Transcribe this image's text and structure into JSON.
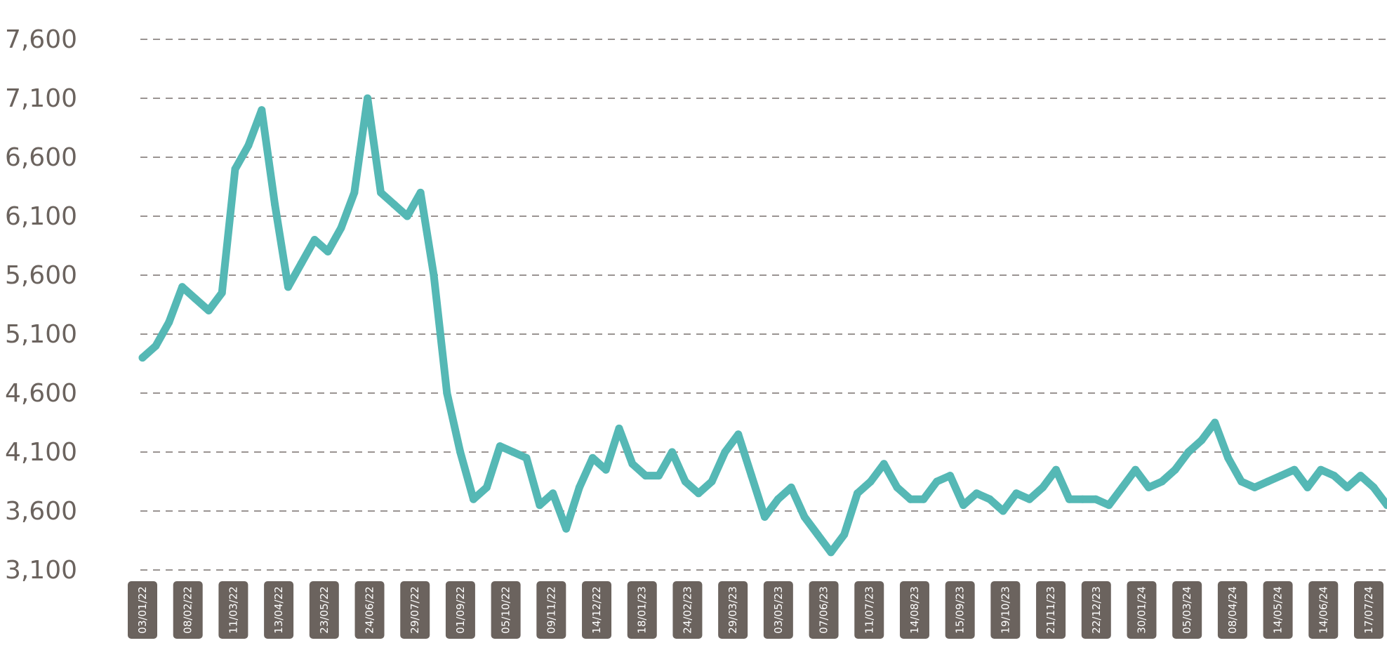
{
  "chart_data": {
    "type": "line",
    "title": "",
    "xlabel": "",
    "ylabel": "",
    "ylim": [
      3100,
      7600
    ],
    "y_ticks": [
      "3,100",
      "3,600",
      "4,100",
      "4,600",
      "5,100",
      "5,600",
      "6,100",
      "6,600",
      "7,100",
      "7,600"
    ],
    "y_tick_values": [
      3100,
      3600,
      4100,
      4600,
      5100,
      5600,
      6100,
      6600,
      7100,
      7600
    ],
    "x_ticks": [
      "03/01/22",
      "08/02/22",
      "11/03/22",
      "13/04/22",
      "23/05/22",
      "24/06/22",
      "29/07/22",
      "01/09/22",
      "05/10/22",
      "09/11/22",
      "14/12/22",
      "18/01/23",
      "24/02/23",
      "29/03/23",
      "03/05/23",
      "07/06/23",
      "11/07/23",
      "14/08/23",
      "15/09/23",
      "19/10/23",
      "21/11/23",
      "22/12/23",
      "30/01/24",
      "05/03/24",
      "08/04/24",
      "14/05/24",
      "14/06/24",
      "17/07/24"
    ],
    "grid": true,
    "legend": "none",
    "colors": {
      "line": "#55b8b5",
      "grid": "#9a9492",
      "tick_text": "#6b635e",
      "tick_badge": "#6b635e",
      "tick_badge_text": "#ffffff"
    },
    "series": [
      {
        "values": [
          4900,
          5000,
          5200,
          5500,
          5400,
          5300,
          5450,
          6500,
          6700,
          7000,
          6200,
          5500,
          5700,
          5900,
          5800,
          6000,
          6300,
          7100,
          6300,
          6200,
          6100,
          6300,
          5600,
          4600,
          4100,
          3700,
          3800,
          4150,
          4100,
          4050,
          3650,
          3750,
          3450,
          3800,
          4050,
          3950,
          4300,
          4000,
          3900,
          3900,
          4100,
          3850,
          3750,
          3850,
          4100,
          4250,
          3900,
          3550,
          3700,
          3800,
          3550,
          3400,
          3250,
          3400,
          3750,
          3850,
          4000,
          3800,
          3700,
          3700,
          3850,
          3900,
          3650,
          3750,
          3700,
          3600,
          3750,
          3700,
          3800,
          3950,
          3700,
          3700,
          3700,
          3650,
          3800,
          3950,
          3800,
          3850,
          3950,
          4100,
          4200,
          4350,
          4050,
          3850,
          3800,
          3850,
          3900,
          3950,
          3800,
          3950,
          3900,
          3800,
          3900,
          3800,
          3650
        ]
      }
    ]
  }
}
